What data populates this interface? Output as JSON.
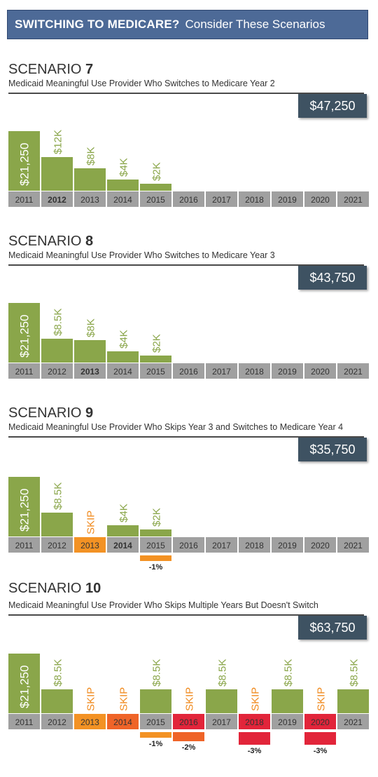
{
  "header": {
    "title_bold": "SWITCHING TO MEDICARE?",
    "title_rest": "Consider These Scenarios"
  },
  "colors": {
    "paid": "#8aa64a",
    "year_box": "#a0a0a0",
    "skip": "#f39224",
    "skip_dark": "#ef6428",
    "skip_red": "#e2253a",
    "total_box": "#3e5262",
    "banner": "#4d6a97"
  },
  "chart_data": [
    {
      "type": "bar",
      "label": "SCENARIO",
      "number": "7",
      "subtitle": "Medicaid Meaningful Use Provider Who Switches to Medicare Year 2",
      "total": "$47,250",
      "categories": [
        "2011",
        "2012",
        "2013",
        "2014",
        "2015",
        "2016",
        "2017",
        "2018",
        "2019",
        "2020",
        "2021"
      ],
      "values": [
        21250,
        12000,
        8000,
        4000,
        2000,
        0,
        0,
        0,
        0,
        0,
        0
      ],
      "labels": [
        "$21,250",
        "$12K",
        "$8K",
        "$4K",
        "$2K",
        "",
        "",
        "",
        "",
        "",
        ""
      ],
      "status": [
        "paid",
        "paid",
        "paid",
        "paid",
        "paid",
        "none",
        "none",
        "none",
        "none",
        "none",
        "none"
      ],
      "bold_year": "2012",
      "penalties": []
    },
    {
      "type": "bar",
      "label": "SCENARIO",
      "number": "8",
      "subtitle": "Medicaid Meaningful Use Provider Who Switches to Medicare Year 3",
      "total": "$43,750",
      "categories": [
        "2011",
        "2012",
        "2013",
        "2014",
        "2015",
        "2016",
        "2017",
        "2018",
        "2019",
        "2020",
        "2021"
      ],
      "values": [
        21250,
        8500,
        8000,
        4000,
        2000,
        0,
        0,
        0,
        0,
        0,
        0
      ],
      "labels": [
        "$21,250",
        "$8.5K",
        "$8K",
        "$4K",
        "$2K",
        "",
        "",
        "",
        "",
        "",
        ""
      ],
      "status": [
        "paid",
        "paid",
        "paid",
        "paid",
        "paid",
        "none",
        "none",
        "none",
        "none",
        "none",
        "none"
      ],
      "bold_year": "2013",
      "penalties": []
    },
    {
      "type": "bar",
      "label": "SCENARIO",
      "number": "9",
      "subtitle": "Medicaid Meaningful Use Provider Who Skips Year 3 and Switches to Medicare Year 4",
      "total": "$35,750",
      "categories": [
        "2011",
        "2012",
        "2013",
        "2014",
        "2015",
        "2016",
        "2017",
        "2018",
        "2019",
        "2020",
        "2021"
      ],
      "values": [
        21250,
        8500,
        0,
        4000,
        2000,
        0,
        0,
        0,
        0,
        0,
        0
      ],
      "labels": [
        "$21,250",
        "$8.5K",
        "SKIP",
        "$4K",
        "$2K",
        "",
        "",
        "",
        "",
        "",
        ""
      ],
      "status": [
        "paid",
        "paid",
        "skip",
        "paid",
        "paid",
        "none",
        "none",
        "none",
        "none",
        "none",
        "none"
      ],
      "bold_year": "2014",
      "penalties": [
        {
          "index": 4,
          "label": "-1%",
          "pct": 1,
          "color": "#f39224"
        }
      ]
    },
    {
      "type": "bar",
      "label": "SCENARIO",
      "number": "10",
      "subtitle": "Medicaid Meaningful Use Provider Who Skips Multiple Years But Doesn't Switch",
      "total": "$63,750",
      "categories": [
        "2011",
        "2012",
        "2013",
        "2014",
        "2015",
        "2016",
        "2017",
        "2018",
        "2019",
        "2020",
        "2021"
      ],
      "values": [
        21250,
        8500,
        0,
        0,
        8500,
        0,
        8500,
        0,
        8500,
        0,
        8500
      ],
      "labels": [
        "$21,250",
        "$8.5K",
        "SKIP",
        "SKIP",
        "$8.5K",
        "SKIP",
        "$8.5K",
        "SKIP",
        "$8.5K",
        "SKIP",
        "$8.5K"
      ],
      "status": [
        "paid",
        "paid",
        "skip",
        "skip2",
        "paid",
        "skip3",
        "paid",
        "skip3",
        "paid",
        "skip3",
        "paid"
      ],
      "bold_year": "",
      "penalties": [
        {
          "index": 4,
          "label": "-1%",
          "pct": 1,
          "color": "#f39224"
        },
        {
          "index": 5,
          "label": "-2%",
          "pct": 2,
          "color": "#ef6428"
        },
        {
          "index": 7,
          "label": "-3%",
          "pct": 3,
          "color": "#e2253a"
        },
        {
          "index": 9,
          "label": "-3%",
          "pct": 3,
          "color": "#e2253a"
        }
      ]
    }
  ]
}
